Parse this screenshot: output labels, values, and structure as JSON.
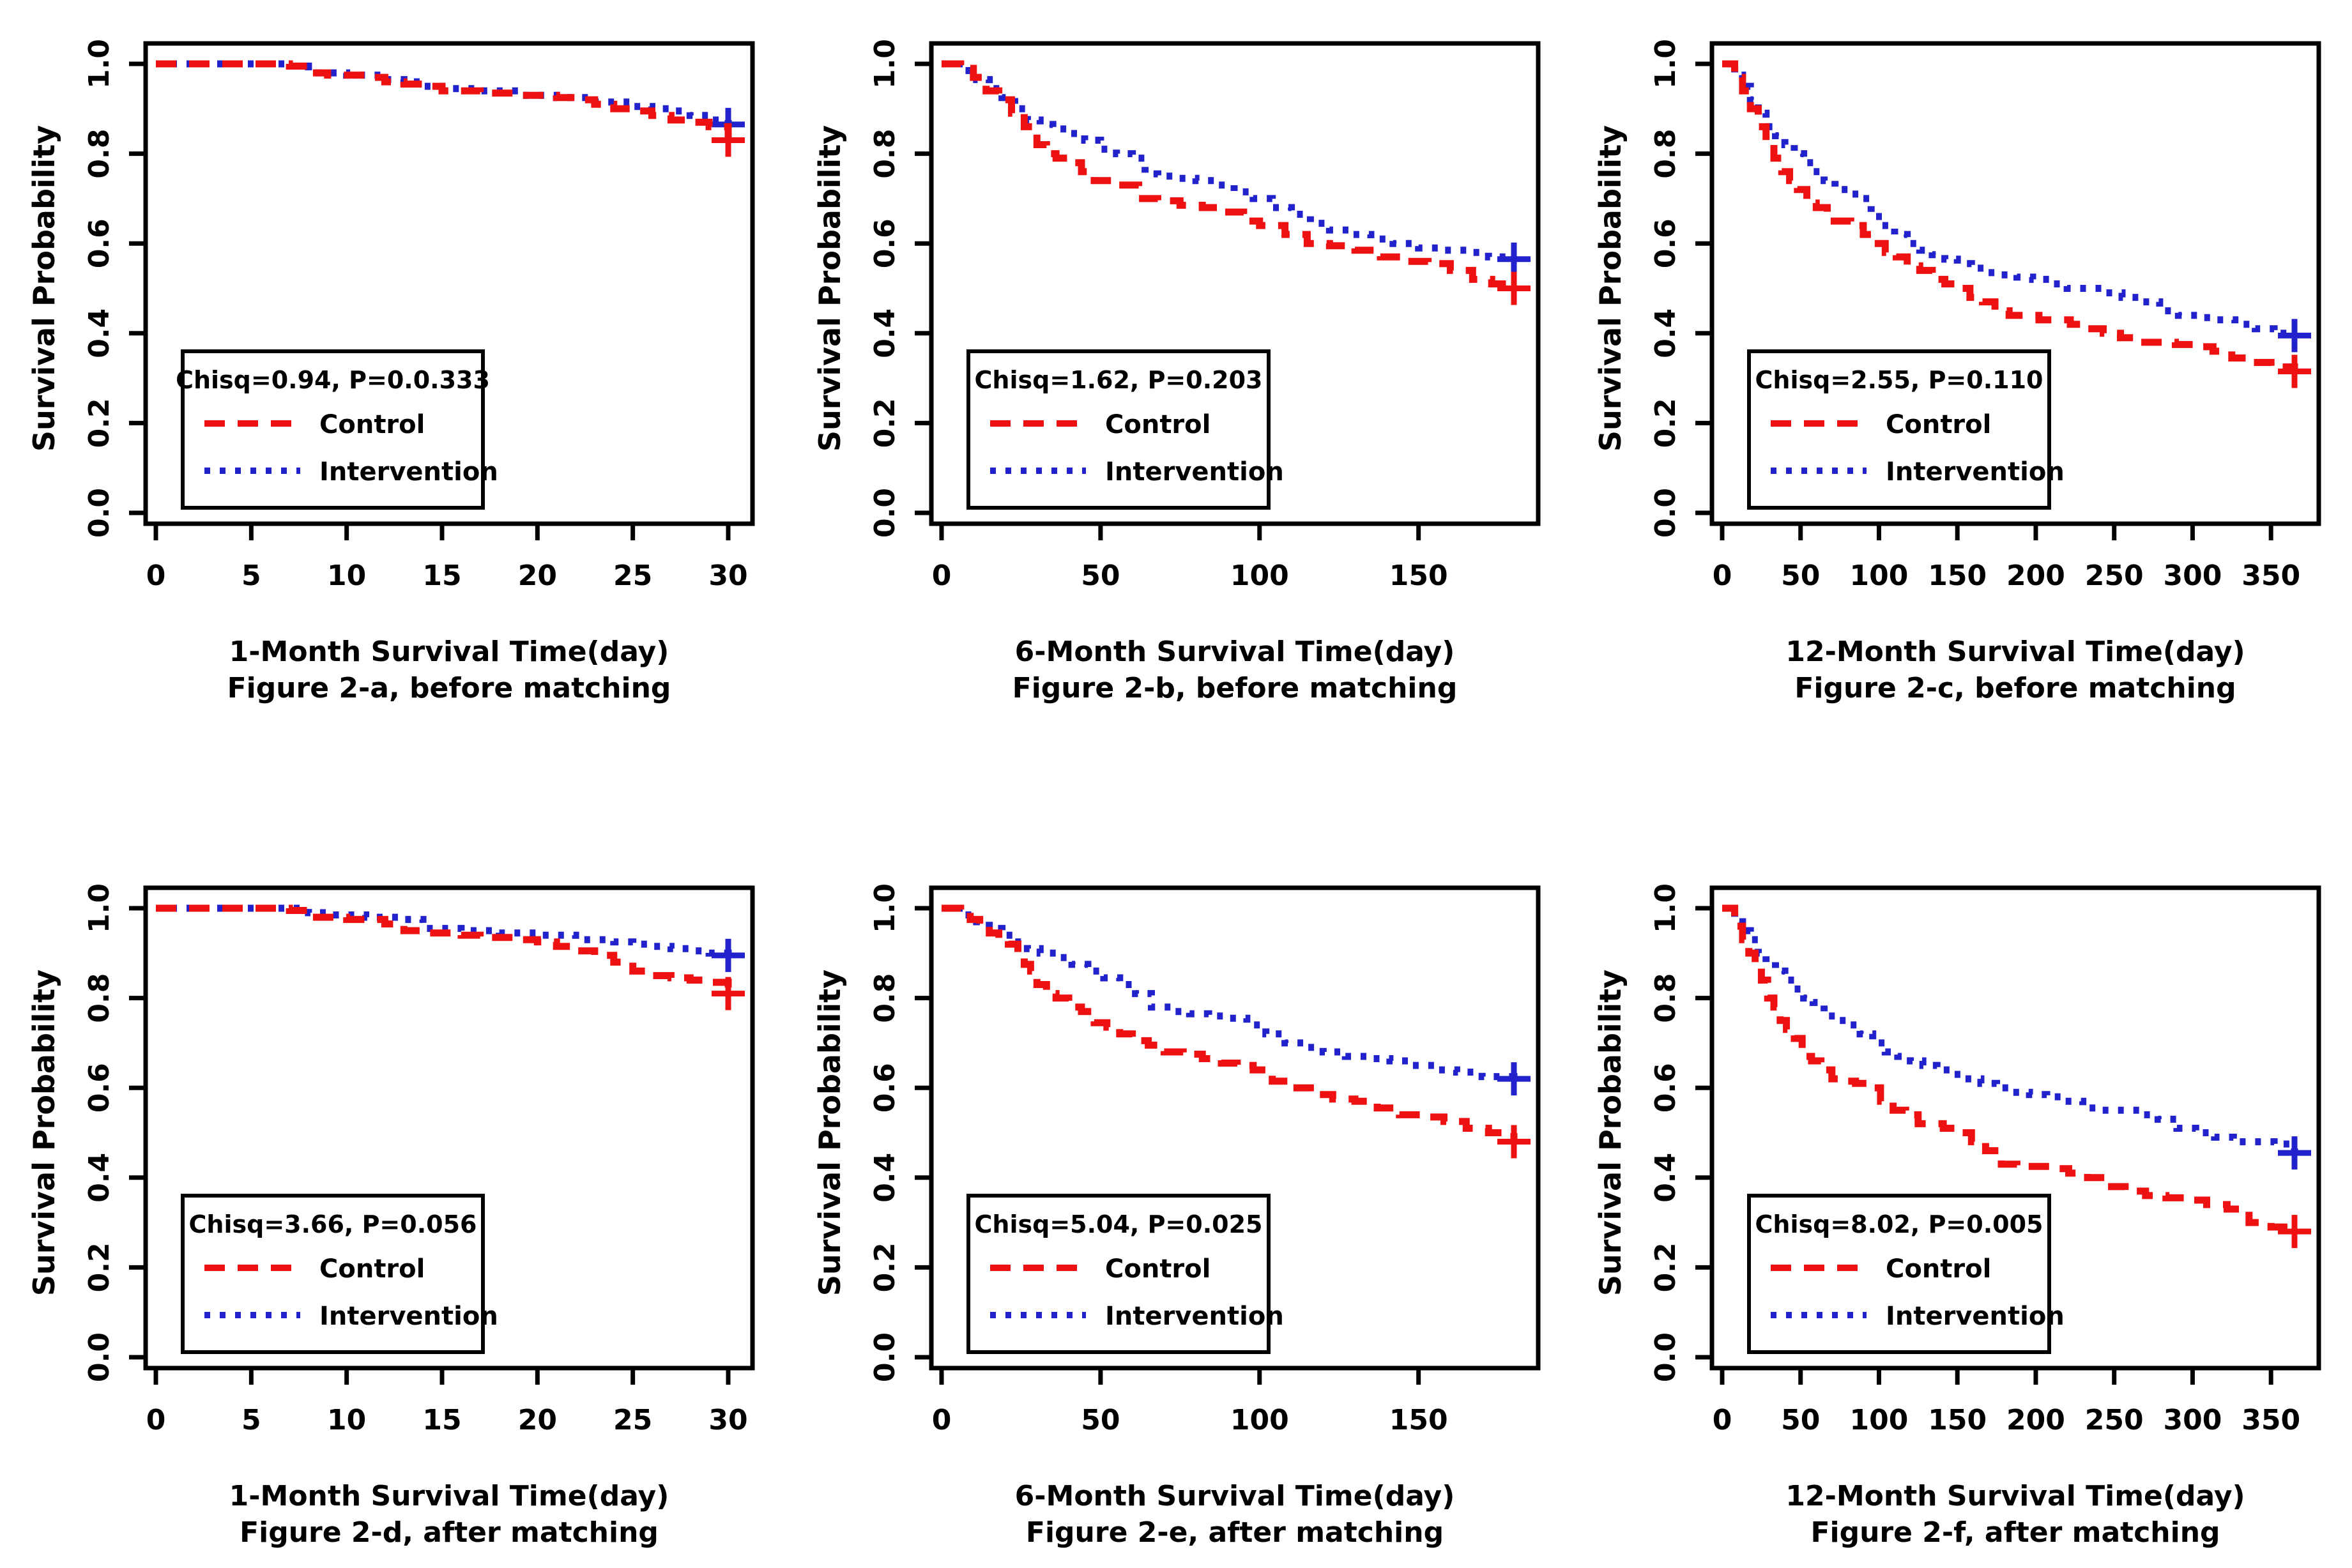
{
  "figure": {
    "ylabel": "Survival Probability",
    "yticks": [
      "0.0",
      "0.2",
      "0.4",
      "0.6",
      "0.8",
      "1.0"
    ],
    "legend": {
      "control": "Control",
      "intervention": "Intervention"
    },
    "colors": {
      "control": "#ee1111",
      "intervention": "#2222cc",
      "axis": "#000000",
      "background": "#ffffff"
    }
  },
  "chart_data": [
    {
      "id": "figure-2a",
      "type": "line",
      "step": true,
      "xlabel": "1-Month Survival Time(day)",
      "caption": "Figure 2-a, before matching",
      "annotation": "Chisq=0.94, P=0.0.333",
      "xlim": [
        0,
        30
      ],
      "ylim": [
        0,
        1
      ],
      "xticks": [
        0,
        5,
        10,
        15,
        20,
        25,
        30
      ],
      "legend_position": "lower-left",
      "series": [
        {
          "name": "Control",
          "style": "dashed",
          "x": [
            0,
            7,
            8,
            9,
            11,
            12,
            13,
            14,
            15,
            17,
            19,
            21,
            22,
            23,
            24,
            25,
            26,
            27,
            28,
            29,
            30
          ],
          "y": [
            1.0,
            0.995,
            0.98,
            0.975,
            0.97,
            0.96,
            0.955,
            0.95,
            0.94,
            0.935,
            0.93,
            0.925,
            0.92,
            0.91,
            0.9,
            0.895,
            0.885,
            0.875,
            0.87,
            0.86,
            0.83
          ],
          "censor": [
            30,
            0.83
          ]
        },
        {
          "name": "Intervention",
          "style": "dotted",
          "x": [
            0,
            7,
            8,
            10,
            12,
            13,
            14,
            15,
            17,
            19,
            21,
            23,
            25,
            26,
            27,
            28,
            29,
            30
          ],
          "y": [
            1.0,
            0.995,
            0.98,
            0.975,
            0.965,
            0.96,
            0.95,
            0.945,
            0.94,
            0.93,
            0.925,
            0.915,
            0.905,
            0.9,
            0.895,
            0.885,
            0.875,
            0.865
          ],
          "censor": [
            30,
            0.865
          ]
        }
      ]
    },
    {
      "id": "figure-2b",
      "type": "line",
      "step": true,
      "xlabel": "6-Month Survival Time(day)",
      "caption": "Figure 2-b, before matching",
      "annotation": "Chisq=1.62, P=0.203",
      "xlim": [
        0,
        180
      ],
      "ylim": [
        0,
        1
      ],
      "xticks": [
        0,
        50,
        100,
        150
      ],
      "legend_position": "lower-left",
      "series": [
        {
          "name": "Control",
          "style": "dashed",
          "x": [
            0,
            6,
            10,
            14,
            18,
            22,
            26,
            30,
            33,
            36,
            40,
            44,
            48,
            55,
            62,
            68,
            75,
            82,
            88,
            95,
            100,
            108,
            115,
            122,
            130,
            138,
            146,
            153,
            160,
            167,
            173,
            180
          ],
          "y": [
            1.0,
            0.99,
            0.97,
            0.94,
            0.92,
            0.89,
            0.86,
            0.82,
            0.8,
            0.79,
            0.78,
            0.76,
            0.74,
            0.73,
            0.7,
            0.695,
            0.685,
            0.68,
            0.67,
            0.65,
            0.64,
            0.62,
            0.6,
            0.595,
            0.585,
            0.57,
            0.56,
            0.555,
            0.54,
            0.52,
            0.51,
            0.5
          ],
          "censor": [
            180,
            0.5
          ]
        },
        {
          "name": "Intervention",
          "style": "dotted",
          "x": [
            0,
            7,
            11,
            15,
            19,
            23,
            27,
            31,
            35,
            40,
            45,
            50,
            55,
            60,
            64,
            68,
            74,
            80,
            86,
            92,
            98,
            104,
            110,
            116,
            122,
            128,
            135,
            142,
            150,
            158,
            165,
            172,
            180
          ],
          "y": [
            1.0,
            0.985,
            0.965,
            0.945,
            0.925,
            0.9,
            0.875,
            0.865,
            0.855,
            0.845,
            0.83,
            0.81,
            0.8,
            0.79,
            0.755,
            0.75,
            0.745,
            0.74,
            0.73,
            0.715,
            0.7,
            0.68,
            0.665,
            0.645,
            0.63,
            0.62,
            0.61,
            0.6,
            0.59,
            0.585,
            0.58,
            0.57,
            0.565
          ],
          "censor": [
            180,
            0.565
          ]
        }
      ]
    },
    {
      "id": "figure-2c",
      "type": "line",
      "step": true,
      "xlabel": "12-Month Survival Time(day)",
      "caption": "Figure 2-c, before matching",
      "annotation": "Chisq=2.55, P=0.110",
      "xlim": [
        0,
        365
      ],
      "ylim": [
        0,
        1
      ],
      "xticks": [
        0,
        50,
        100,
        150,
        200,
        250,
        300,
        350
      ],
      "legend_position": "lower-left",
      "series": [
        {
          "name": "Control",
          "style": "dashed",
          "x": [
            0,
            8,
            13,
            18,
            23,
            28,
            33,
            38,
            43,
            48,
            54,
            60,
            67,
            74,
            82,
            90,
            97,
            104,
            111,
            118,
            126,
            134,
            142,
            150,
            158,
            166,
            174,
            183,
            192,
            202,
            212,
            222,
            232,
            243,
            254,
            265,
            277,
            289,
            301,
            313,
            325,
            338,
            350,
            365
          ],
          "y": [
            1.0,
            0.97,
            0.94,
            0.9,
            0.86,
            0.82,
            0.79,
            0.76,
            0.74,
            0.72,
            0.69,
            0.68,
            0.65,
            0.65,
            0.64,
            0.62,
            0.6,
            0.58,
            0.57,
            0.55,
            0.54,
            0.52,
            0.51,
            0.5,
            0.48,
            0.47,
            0.45,
            0.44,
            0.44,
            0.43,
            0.43,
            0.42,
            0.41,
            0.4,
            0.39,
            0.38,
            0.38,
            0.375,
            0.37,
            0.36,
            0.345,
            0.335,
            0.325,
            0.315
          ],
          "censor": [
            365,
            0.315
          ]
        },
        {
          "name": "Intervention",
          "style": "dotted",
          "x": [
            0,
            8,
            13,
            18,
            23,
            28,
            34,
            40,
            46,
            52,
            58,
            65,
            72,
            80,
            88,
            95,
            102,
            110,
            118,
            126,
            134,
            142,
            150,
            159,
            168,
            178,
            188,
            198,
            209,
            220,
            231,
            243,
            255,
            267,
            279,
            291,
            303,
            315,
            327,
            340,
            352,
            365
          ],
          "y": [
            1.0,
            0.975,
            0.95,
            0.92,
            0.89,
            0.86,
            0.84,
            0.82,
            0.8,
            0.78,
            0.76,
            0.74,
            0.72,
            0.71,
            0.7,
            0.66,
            0.64,
            0.62,
            0.6,
            0.585,
            0.575,
            0.565,
            0.555,
            0.545,
            0.535,
            0.53,
            0.525,
            0.52,
            0.51,
            0.5,
            0.5,
            0.49,
            0.48,
            0.47,
            0.45,
            0.44,
            0.435,
            0.43,
            0.42,
            0.41,
            0.4,
            0.395
          ],
          "censor": [
            365,
            0.395
          ]
        }
      ]
    },
    {
      "id": "figure-2d",
      "type": "line",
      "step": true,
      "xlabel": "1-Month Survival Time(day)",
      "caption": "Figure 2-d, after matching",
      "annotation": "Chisq=3.66, P=0.056",
      "xlim": [
        0,
        30
      ],
      "ylim": [
        0,
        1
      ],
      "xticks": [
        0,
        5,
        10,
        15,
        20,
        25,
        30
      ],
      "legend_position": "lower-left",
      "series": [
        {
          "name": "Control",
          "style": "dashed",
          "x": [
            0,
            7,
            8,
            10,
            12,
            13,
            14,
            16,
            17,
            19,
            20,
            21,
            22,
            23,
            24,
            25,
            26,
            27,
            28,
            29,
            30
          ],
          "y": [
            1.0,
            0.995,
            0.98,
            0.975,
            0.965,
            0.95,
            0.945,
            0.94,
            0.935,
            0.93,
            0.925,
            0.915,
            0.905,
            0.895,
            0.88,
            0.86,
            0.85,
            0.845,
            0.84,
            0.835,
            0.81
          ],
          "censor": [
            30,
            0.81
          ]
        },
        {
          "name": "Intervention",
          "style": "dotted",
          "x": [
            0,
            8,
            9,
            11,
            13,
            14,
            16,
            18,
            20,
            22,
            24,
            25,
            26,
            27,
            28,
            29,
            30
          ],
          "y": [
            1.0,
            0.99,
            0.985,
            0.98,
            0.975,
            0.955,
            0.95,
            0.945,
            0.94,
            0.93,
            0.925,
            0.92,
            0.915,
            0.91,
            0.905,
            0.9,
            0.895
          ],
          "censor": [
            30,
            0.895
          ]
        }
      ]
    },
    {
      "id": "figure-2e",
      "type": "line",
      "step": true,
      "xlabel": "6-Month Survival Time(day)",
      "caption": "Figure 2-e, after matching",
      "annotation": "Chisq=5.04, P=0.025",
      "xlim": [
        0,
        180
      ],
      "ylim": [
        0,
        1
      ],
      "xticks": [
        0,
        50,
        100,
        150
      ],
      "legend_position": "lower-left",
      "series": [
        {
          "name": "Control",
          "style": "dashed",
          "x": [
            0,
            6,
            9,
            12,
            15,
            18,
            21,
            24,
            26,
            28,
            30,
            33,
            36,
            40,
            44,
            48,
            52,
            56,
            60,
            65,
            70,
            76,
            82,
            88,
            93,
            98,
            104,
            110,
            116,
            123,
            130,
            137,
            144,
            151,
            158,
            165,
            172,
            180
          ],
          "y": [
            1.0,
            0.99,
            0.975,
            0.965,
            0.945,
            0.93,
            0.92,
            0.89,
            0.875,
            0.86,
            0.83,
            0.81,
            0.8,
            0.78,
            0.77,
            0.745,
            0.735,
            0.72,
            0.705,
            0.695,
            0.68,
            0.675,
            0.665,
            0.655,
            0.65,
            0.64,
            0.615,
            0.6,
            0.585,
            0.575,
            0.57,
            0.555,
            0.54,
            0.535,
            0.525,
            0.51,
            0.5,
            0.48
          ],
          "censor": [
            180,
            0.48
          ]
        },
        {
          "name": "Intervention",
          "style": "dotted",
          "x": [
            0,
            7,
            11,
            15,
            19,
            23,
            27,
            31,
            36,
            41,
            46,
            51,
            56,
            61,
            66,
            72,
            78,
            84,
            90,
            96,
            102,
            108,
            114,
            120,
            127,
            134,
            141,
            148,
            155,
            162,
            170,
            180
          ],
          "y": [
            1.0,
            0.985,
            0.97,
            0.955,
            0.94,
            0.925,
            0.91,
            0.9,
            0.89,
            0.875,
            0.86,
            0.845,
            0.83,
            0.81,
            0.78,
            0.77,
            0.765,
            0.76,
            0.755,
            0.74,
            0.72,
            0.7,
            0.69,
            0.68,
            0.67,
            0.665,
            0.66,
            0.65,
            0.64,
            0.635,
            0.625,
            0.62
          ],
          "censor": [
            180,
            0.62
          ]
        }
      ]
    },
    {
      "id": "figure-2f",
      "type": "line",
      "step": true,
      "xlabel": "12-Month Survival Time(day)",
      "caption": "Figure 2-f, after matching",
      "annotation": "Chisq=8.02, P=0.005",
      "xlim": [
        0,
        365
      ],
      "ylim": [
        0,
        1
      ],
      "xticks": [
        0,
        50,
        100,
        150,
        200,
        250,
        300,
        350
      ],
      "legend_position": "lower-left",
      "series": [
        {
          "name": "Control",
          "style": "dashed",
          "x": [
            0,
            8,
            13,
            17,
            21,
            25,
            29,
            33,
            37,
            41,
            46,
            51,
            57,
            63,
            70,
            77,
            85,
            93,
            101,
            109,
            117,
            125,
            133,
            141,
            150,
            159,
            168,
            178,
            188,
            199,
            210,
            221,
            233,
            245,
            257,
            270,
            283,
            296,
            309,
            322,
            336,
            350,
            365
          ],
          "y": [
            1.0,
            0.96,
            0.93,
            0.9,
            0.87,
            0.84,
            0.8,
            0.78,
            0.75,
            0.73,
            0.71,
            0.67,
            0.66,
            0.64,
            0.62,
            0.615,
            0.61,
            0.6,
            0.57,
            0.55,
            0.54,
            0.52,
            0.52,
            0.51,
            0.5,
            0.48,
            0.46,
            0.43,
            0.425,
            0.425,
            0.42,
            0.41,
            0.4,
            0.38,
            0.37,
            0.36,
            0.355,
            0.35,
            0.34,
            0.33,
            0.3,
            0.29,
            0.28
          ],
          "censor": [
            365,
            0.28
          ]
        },
        {
          "name": "Intervention",
          "style": "dotted",
          "x": [
            0,
            8,
            13,
            18,
            23,
            28,
            34,
            40,
            46,
            52,
            58,
            65,
            72,
            80,
            88,
            96,
            104,
            112,
            120,
            128,
            137,
            146,
            155,
            165,
            175,
            185,
            196,
            207,
            218,
            230,
            242,
            254,
            266,
            278,
            290,
            302,
            314,
            326,
            339,
            352,
            365
          ],
          "y": [
            1.0,
            0.97,
            0.95,
            0.93,
            0.9,
            0.88,
            0.86,
            0.84,
            0.82,
            0.8,
            0.79,
            0.76,
            0.75,
            0.74,
            0.72,
            0.7,
            0.68,
            0.67,
            0.66,
            0.65,
            0.64,
            0.63,
            0.62,
            0.61,
            0.6,
            0.59,
            0.585,
            0.58,
            0.57,
            0.555,
            0.55,
            0.55,
            0.54,
            0.53,
            0.51,
            0.5,
            0.49,
            0.48,
            0.48,
            0.475,
            0.455
          ],
          "censor": [
            365,
            0.455
          ]
        }
      ]
    }
  ]
}
